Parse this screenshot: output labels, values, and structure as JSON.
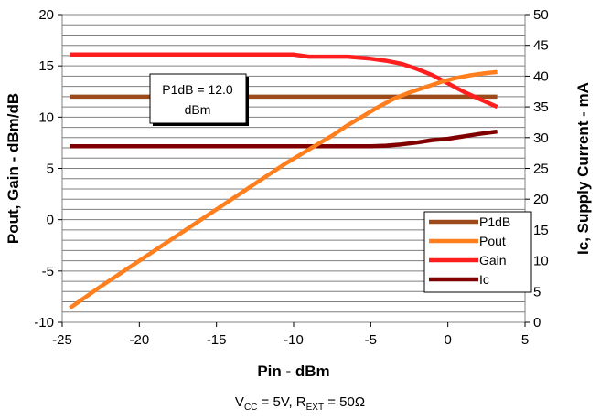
{
  "chart_data": {
    "type": "line",
    "xlabel": "Pin - dBm",
    "ylabel": "Pout, Gain - dBm/dB",
    "y2label": "Ic, Supply Current - mA",
    "xlim": [
      -25,
      5
    ],
    "ylim": [
      -10,
      20
    ],
    "y2lim": [
      0,
      50
    ],
    "xticks": [
      -25,
      -20,
      -15,
      -10,
      -5,
      0,
      5
    ],
    "yticks": [
      -10,
      -5,
      0,
      5,
      10,
      15,
      20
    ],
    "y2ticks": [
      0,
      5,
      10,
      15,
      20,
      25,
      30,
      35,
      40,
      45,
      50
    ],
    "grid": "horizontal minor lines every 1 dB",
    "legend_position": "lower-right",
    "series": [
      {
        "name": "P1dB",
        "axis": "left",
        "color": "#9c4a1a",
        "x": [
          -24.5,
          3.2
        ],
        "y": [
          12.0,
          12.0
        ]
      },
      {
        "name": "Pout",
        "axis": "left",
        "color": "#ff7f1e",
        "x": [
          -24.5,
          -22.5,
          -20.5,
          -18.5,
          -16.5,
          -14.5,
          -12.5,
          -10.5,
          -8.5,
          -7.5,
          -6.5,
          -5.5,
          -4.5,
          -3.5,
          -2.5,
          -1.5,
          -0.5,
          0.5,
          1.5,
          2.5,
          3.2
        ],
        "y": [
          -8.6,
          -6.5,
          -4.5,
          -2.5,
          -0.5,
          1.5,
          3.5,
          5.5,
          7.3,
          8.2,
          9.2,
          10.1,
          11.0,
          11.8,
          12.4,
          12.9,
          13.4,
          13.8,
          14.1,
          14.3,
          14.4
        ]
      },
      {
        "name": "Gain",
        "axis": "left",
        "color": "#ff1e1e",
        "x": [
          -24.5,
          -10,
          -9,
          -8,
          -6.5,
          -5,
          -4,
          -3,
          -2,
          -1,
          0,
          1,
          2,
          3.2
        ],
        "y": [
          16.1,
          16.1,
          15.9,
          15.9,
          15.9,
          15.7,
          15.5,
          15.2,
          14.7,
          14.1,
          13.3,
          12.5,
          11.8,
          11.0
        ]
      },
      {
        "name": "Ic",
        "axis": "right",
        "color": "#800000",
        "x": [
          -24.5,
          -5,
          -4,
          -3,
          -2,
          -1,
          0,
          1,
          2,
          3.2
        ],
        "y": [
          28.6,
          28.6,
          28.7,
          28.9,
          29.2,
          29.6,
          29.8,
          30.2,
          30.6,
          31.0
        ]
      }
    ],
    "annotation": {
      "line1": "P1dB = 12.0",
      "line2": "dBm"
    }
  },
  "caption": {
    "vcc_prefix": "V",
    "vcc_sub": "CC",
    "vcc_value": " = 5V, R",
    "rext_sub": "EXT",
    "rext_value": " = 50Ω"
  }
}
